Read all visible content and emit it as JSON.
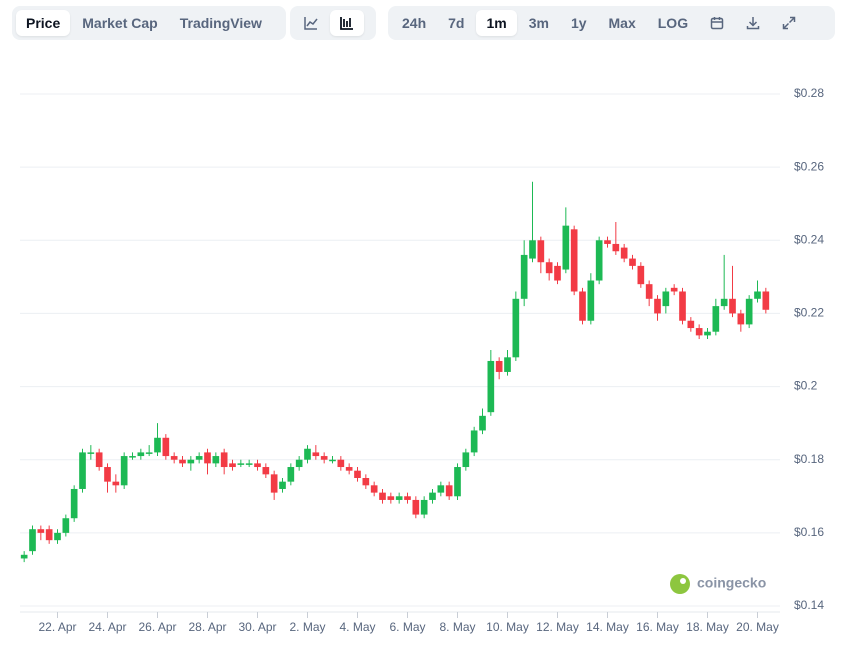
{
  "toolbar": {
    "tabs": [
      "Price",
      "Market Cap",
      "TradingView"
    ],
    "ranges": [
      "24h",
      "7d",
      "1m",
      "3m",
      "1y",
      "Max",
      "LOG"
    ]
  },
  "watermark": "coingecko",
  "chart_data": {
    "type": "candlestick",
    "up_color": "#1db954",
    "down_color": "#f23b45",
    "grid": true,
    "ylim": [
      0.14,
      0.28
    ],
    "yticks": [
      {
        "value": 0.14,
        "label": "$0.14"
      },
      {
        "value": 0.16,
        "label": "$0.16"
      },
      {
        "value": 0.18,
        "label": "$0.18"
      },
      {
        "value": 0.2,
        "label": "$0.2"
      },
      {
        "value": 0.22,
        "label": "$0.22"
      },
      {
        "value": 0.24,
        "label": "$0.24"
      },
      {
        "value": 0.26,
        "label": "$0.26"
      },
      {
        "value": 0.28,
        "label": "$0.28"
      }
    ],
    "xticks": [
      {
        "value": 4,
        "label": "22. Apr"
      },
      {
        "value": 10,
        "label": "24. Apr"
      },
      {
        "value": 16,
        "label": "26. Apr"
      },
      {
        "value": 22,
        "label": "28. Apr"
      },
      {
        "value": 28,
        "label": "30. Apr"
      },
      {
        "value": 34,
        "label": "2. May"
      },
      {
        "value": 40,
        "label": "4. May"
      },
      {
        "value": 46,
        "label": "6. May"
      },
      {
        "value": 52,
        "label": "8. May"
      },
      {
        "value": 58,
        "label": "10. May"
      },
      {
        "value": 64,
        "label": "12. May"
      },
      {
        "value": 70,
        "label": "14. May"
      },
      {
        "value": 76,
        "label": "16. May"
      },
      {
        "value": 82,
        "label": "18. May"
      },
      {
        "value": 88,
        "label": "20. May"
      }
    ],
    "open": [
      0.153,
      0.155,
      0.161,
      0.161,
      0.158,
      0.16,
      0.164,
      0.172,
      0.182,
      0.182,
      0.178,
      0.174,
      0.173,
      0.181,
      0.181,
      0.182,
      0.182,
      0.186,
      0.181,
      0.18,
      0.179,
      0.18,
      0.182,
      0.179,
      0.182,
      0.179,
      0.179,
      0.179,
      0.179,
      0.178,
      0.176,
      0.172,
      0.174,
      0.178,
      0.18,
      0.182,
      0.181,
      0.18,
      0.18,
      0.178,
      0.177,
      0.175,
      0.173,
      0.171,
      0.17,
      0.169,
      0.17,
      0.169,
      0.165,
      0.169,
      0.171,
      0.173,
      0.17,
      0.178,
      0.182,
      0.188,
      0.193,
      0.207,
      0.204,
      0.208,
      0.224,
      0.235,
      0.24,
      0.234,
      0.233,
      0.232,
      0.243,
      0.226,
      0.218,
      0.229,
      0.24,
      0.239,
      0.238,
      0.235,
      0.233,
      0.228,
      0.224,
      0.222,
      0.227,
      0.226,
      0.218,
      0.216,
      0.214,
      0.215,
      0.222,
      0.224,
      0.22,
      0.217,
      0.224,
      0.226
    ],
    "high": [
      0.155,
      0.162,
      0.162,
      0.162,
      0.161,
      0.165,
      0.173,
      0.183,
      0.184,
      0.183,
      0.179,
      0.176,
      0.182,
      0.182,
      0.183,
      0.184,
      0.19,
      0.187,
      0.182,
      0.181,
      0.181,
      0.182,
      0.183,
      0.182,
      0.183,
      0.18,
      0.18,
      0.18,
      0.18,
      0.179,
      0.177,
      0.175,
      0.179,
      0.181,
      0.184,
      0.184,
      0.182,
      0.181,
      0.181,
      0.179,
      0.178,
      0.176,
      0.174,
      0.172,
      0.171,
      0.171,
      0.171,
      0.17,
      0.17,
      0.172,
      0.174,
      0.174,
      0.179,
      0.183,
      0.189,
      0.194,
      0.21,
      0.208,
      0.21,
      0.226,
      0.24,
      0.256,
      0.241,
      0.235,
      0.234,
      0.249,
      0.244,
      0.227,
      0.231,
      0.241,
      0.241,
      0.245,
      0.239,
      0.236,
      0.234,
      0.229,
      0.225,
      0.227,
      0.228,
      0.227,
      0.219,
      0.217,
      0.216,
      0.224,
      0.236,
      0.233,
      0.221,
      0.225,
      0.229,
      0.227
    ],
    "low": [
      0.152,
      0.154,
      0.158,
      0.157,
      0.157,
      0.159,
      0.163,
      0.171,
      0.18,
      0.177,
      0.171,
      0.171,
      0.172,
      0.18,
      0.18,
      0.181,
      0.181,
      0.18,
      0.179,
      0.178,
      0.177,
      0.179,
      0.176,
      0.178,
      0.176,
      0.177,
      0.178,
      0.178,
      0.177,
      0.175,
      0.169,
      0.171,
      0.173,
      0.177,
      0.179,
      0.18,
      0.179,
      0.179,
      0.177,
      0.176,
      0.174,
      0.172,
      0.17,
      0.168,
      0.168,
      0.168,
      0.168,
      0.164,
      0.164,
      0.168,
      0.17,
      0.169,
      0.169,
      0.177,
      0.181,
      0.187,
      0.192,
      0.202,
      0.203,
      0.207,
      0.222,
      0.234,
      0.231,
      0.229,
      0.228,
      0.231,
      0.225,
      0.217,
      0.217,
      0.228,
      0.238,
      0.236,
      0.234,
      0.232,
      0.227,
      0.222,
      0.218,
      0.22,
      0.225,
      0.217,
      0.215,
      0.213,
      0.213,
      0.214,
      0.221,
      0.219,
      0.215,
      0.216,
      0.223,
      0.22
    ],
    "close": [
      0.154,
      0.161,
      0.16,
      0.158,
      0.16,
      0.164,
      0.172,
      0.182,
      0.182,
      0.178,
      0.174,
      0.173,
      0.181,
      0.181,
      0.182,
      0.182,
      0.186,
      0.181,
      0.18,
      0.179,
      0.18,
      0.181,
      0.179,
      0.181,
      0.178,
      0.178,
      0.179,
      0.179,
      0.178,
      0.176,
      0.171,
      0.174,
      0.178,
      0.18,
      0.183,
      0.181,
      0.18,
      0.18,
      0.178,
      0.177,
      0.175,
      0.173,
      0.171,
      0.169,
      0.169,
      0.17,
      0.169,
      0.165,
      0.169,
      0.171,
      0.173,
      0.17,
      0.178,
      0.182,
      0.188,
      0.192,
      0.207,
      0.204,
      0.208,
      0.224,
      0.236,
      0.24,
      0.234,
      0.231,
      0.229,
      0.244,
      0.226,
      0.218,
      0.229,
      0.24,
      0.239,
      0.237,
      0.235,
      0.233,
      0.228,
      0.224,
      0.22,
      0.226,
      0.226,
      0.218,
      0.216,
      0.214,
      0.215,
      0.222,
      0.224,
      0.22,
      0.217,
      0.224,
      0.226,
      0.221
    ]
  }
}
